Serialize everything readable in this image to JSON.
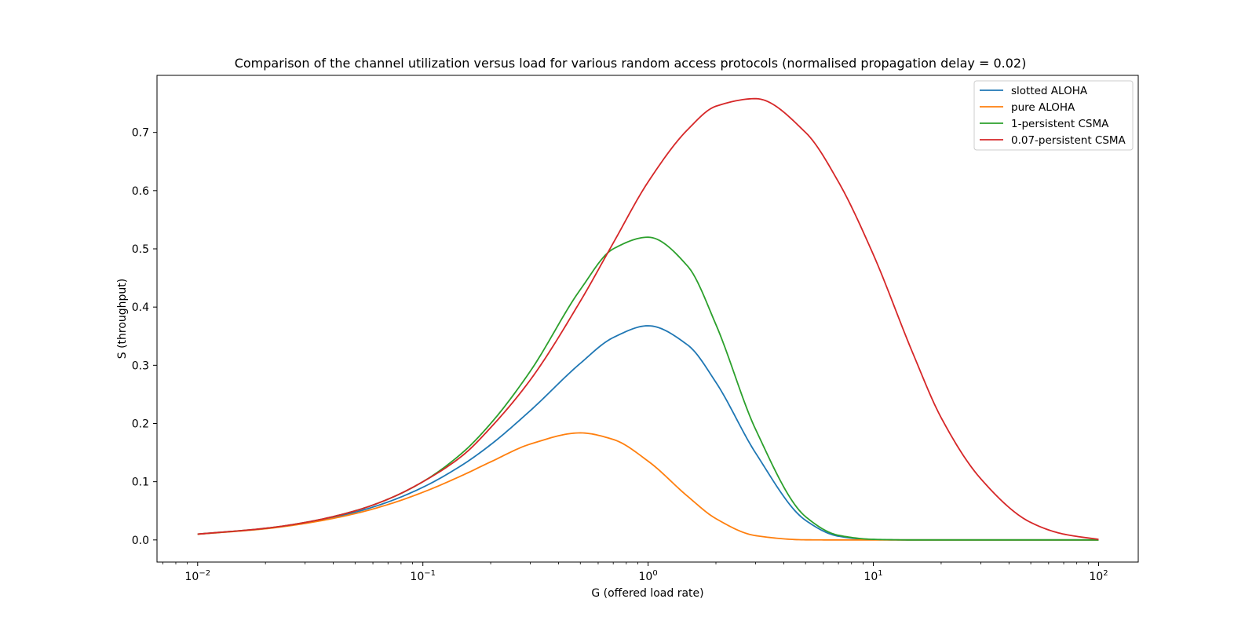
{
  "chart_data": {
    "type": "line",
    "title": "Comparison of the channel utilization versus load for various random access protocols (normalised propagation delay = 0.02)",
    "xlabel": "G (offered load rate)",
    "ylabel": "S (throughput)",
    "x_scale": "log",
    "xlim": [
      0.0066,
      150
    ],
    "ylim": [
      -0.038,
      0.798
    ],
    "x_ticks": [
      {
        "value": 0.01,
        "base": "10",
        "exp": "−2"
      },
      {
        "value": 0.1,
        "base": "10",
        "exp": "−1"
      },
      {
        "value": 1,
        "base": "10",
        "exp": "0"
      },
      {
        "value": 10,
        "base": "10",
        "exp": "1"
      },
      {
        "value": 100,
        "base": "10",
        "exp": "2"
      }
    ],
    "y_ticks": [
      "0.0",
      "0.1",
      "0.2",
      "0.3",
      "0.4",
      "0.5",
      "0.6",
      "0.7"
    ],
    "grid": false,
    "legend_position": "top-right",
    "x": [
      0.01,
      0.02,
      0.03,
      0.05,
      0.07,
      0.1,
      0.15,
      0.2,
      0.3,
      0.5,
      0.7,
      1,
      1.5,
      2,
      3,
      5,
      7,
      10,
      15,
      20,
      30,
      50,
      70,
      100
    ],
    "series": [
      {
        "name": "slotted ALOHA",
        "color": "#1f77b4",
        "values": [
          0.0099,
          0.0196,
          0.0291,
          0.0476,
          0.0652,
          0.0905,
          0.1291,
          0.1637,
          0.2222,
          0.3033,
          0.3476,
          0.3679,
          0.3347,
          0.2707,
          0.1494,
          0.0337,
          0.0064,
          0.0005,
          0.0,
          0.0,
          0.0,
          0.0,
          0.0,
          0.0
        ]
      },
      {
        "name": "pure ALOHA",
        "color": "#ff7f0e",
        "values": [
          0.0098,
          0.0192,
          0.0283,
          0.0452,
          0.0608,
          0.0819,
          0.1111,
          0.1341,
          0.1647,
          0.1839,
          0.1726,
          0.1353,
          0.0747,
          0.0366,
          0.0074,
          0.0002,
          0.0,
          0.0,
          0.0,
          0.0,
          0.0,
          0.0,
          0.0,
          0.0
        ]
      },
      {
        "name": "1-persistent CSMA",
        "color": "#2ca02c",
        "values": [
          0.01,
          0.02,
          0.03,
          0.05,
          0.07,
          0.1,
          0.15,
          0.2,
          0.29,
          0.43,
          0.5,
          0.52,
          0.47,
          0.37,
          0.19,
          0.04,
          0.008,
          0.001,
          0.0,
          0.0,
          0.0,
          0.0,
          0.0,
          0.0
        ]
      },
      {
        "name": "0.07-persistent CSMA",
        "color": "#d62728",
        "values": [
          0.01,
          0.02,
          0.03,
          0.05,
          0.07,
          0.1,
          0.145,
          0.193,
          0.275,
          0.41,
          0.51,
          0.615,
          0.705,
          0.745,
          0.758,
          0.7,
          0.615,
          0.49,
          0.32,
          0.21,
          0.105,
          0.03,
          0.01,
          0.001
        ]
      }
    ]
  }
}
